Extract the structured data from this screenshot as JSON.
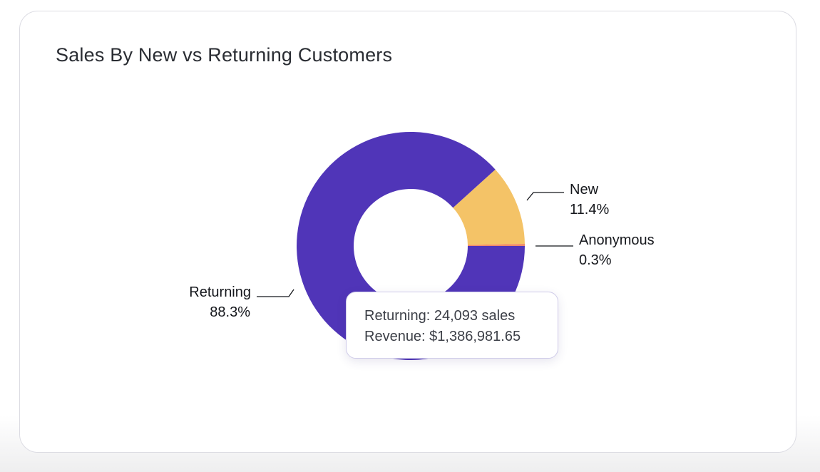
{
  "card": {
    "title": "Sales By New vs Returning Customers"
  },
  "chart_data": {
    "type": "donut",
    "title": "Sales By New vs Returning Customers",
    "slices": [
      {
        "name": "Returning",
        "percent": 88.3,
        "percent_label": "88.3%",
        "color": "#5035b8"
      },
      {
        "name": "New",
        "percent": 11.4,
        "percent_label": "11.4%",
        "color": "#f4c367"
      },
      {
        "name": "Anonymous",
        "percent": 0.3,
        "percent_label": "0.3%",
        "color": "#ef8a6a"
      }
    ]
  },
  "tooltip": {
    "line1": "Returning: 24,093 sales",
    "line2": "Revenue: $1,386,981.65"
  }
}
